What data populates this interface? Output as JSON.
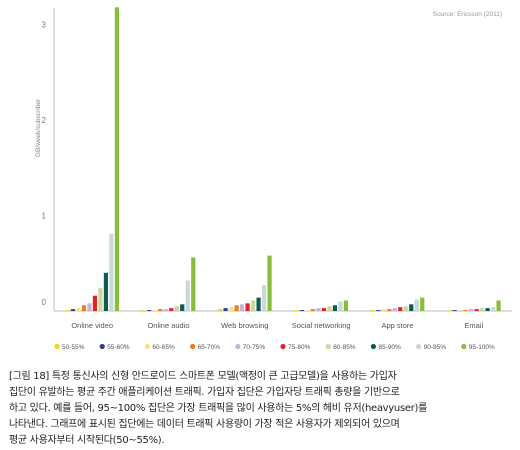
{
  "chart_data": {
    "type": "bar",
    "source": "Source: Ericsson (2011)",
    "ylabel": "GB/week/subscriber",
    "ylim": [
      0,
      3.2
    ],
    "yticks": [
      "0",
      "1",
      "2",
      "3"
    ],
    "categories": [
      "Online video",
      "Online audio",
      "Web browsing",
      "Social networking",
      "App store",
      "Email"
    ],
    "legend_position": "bottom",
    "grid": false,
    "series": [
      {
        "name": "50-55%",
        "color": "#f5d21a",
        "values": [
          0.01,
          0.01,
          0.02,
          0.01,
          0.01,
          0.0
        ]
      },
      {
        "name": "55-60%",
        "color": "#2e3f8f",
        "values": [
          0.02,
          0.01,
          0.03,
          0.01,
          0.01,
          0.01
        ]
      },
      {
        "name": "60-65%",
        "color": "#f7e08a",
        "values": [
          0.03,
          0.01,
          0.04,
          0.01,
          0.02,
          0.01
        ]
      },
      {
        "name": "65-70%",
        "color": "#f07d1a",
        "values": [
          0.06,
          0.02,
          0.06,
          0.02,
          0.02,
          0.01
        ]
      },
      {
        "name": "70-75%",
        "color": "#c9b3d6",
        "values": [
          0.08,
          0.02,
          0.07,
          0.03,
          0.03,
          0.02
        ]
      },
      {
        "name": "75-80%",
        "color": "#e4202a",
        "values": [
          0.16,
          0.03,
          0.08,
          0.03,
          0.04,
          0.02
        ]
      },
      {
        "name": "80-85%",
        "color": "#cdd99a",
        "values": [
          0.24,
          0.05,
          0.11,
          0.05,
          0.05,
          0.03
        ]
      },
      {
        "name": "85-90%",
        "color": "#0e5a55",
        "values": [
          0.4,
          0.07,
          0.14,
          0.06,
          0.07,
          0.03
        ]
      },
      {
        "name": "90-95%",
        "color": "#c9d9d6",
        "values": [
          0.81,
          0.32,
          0.27,
          0.1,
          0.12,
          0.04
        ]
      },
      {
        "name": "95-100%",
        "color": "#86bd3b",
        "values": [
          3.18,
          0.56,
          0.58,
          0.11,
          0.14,
          0.11
        ]
      }
    ]
  },
  "caption": {
    "lines": [
      "[그림 18] 특정 통신사의 신형 안드로이드 스마트폰 모델(액정이 큰 고급모델)을 사용하는 가입자",
      "집단이 유발하는 평균 주간 애플리케이션 트래픽. 가입자 집단은 가입자당 트래픽 총량을 기반으로",
      "하고 있다. 예를 들어, 95~100% 집단은 가장 트래픽을 많이 사용하는 5%의 헤비 유저(heavyuser)를",
      "나타낸다. 그래프에 표시된 집단에는 데이터 트래픽 사용량이 가장 적은 사용자가 제외되어 있으며",
      "평균 사용자부터 시작된다(50~55%)."
    ]
  }
}
